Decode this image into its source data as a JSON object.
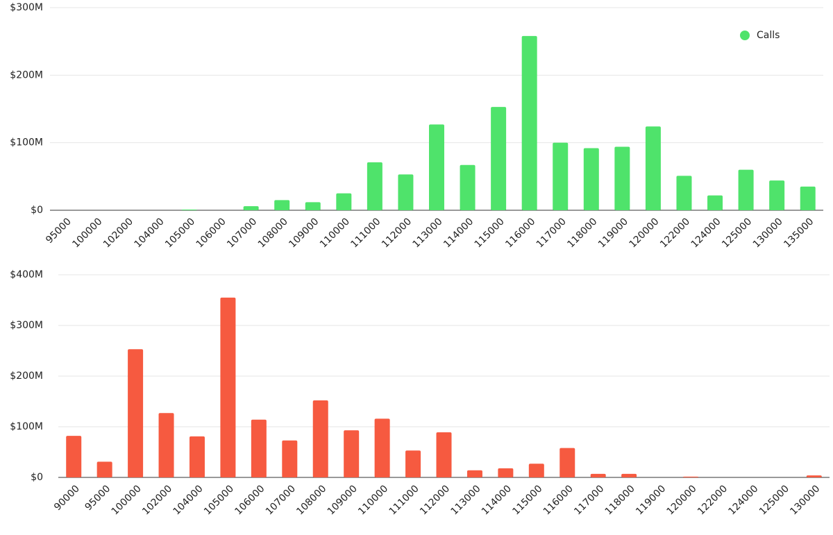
{
  "chart_data": [
    {
      "type": "bar",
      "categories": [
        "95000",
        "100000",
        "102000",
        "104000",
        "105000",
        "106000",
        "107000",
        "108000",
        "109000",
        "110000",
        "111000",
        "112000",
        "113000",
        "114000",
        "115000",
        "116000",
        "117000",
        "118000",
        "119000",
        "120000",
        "122000",
        "124000",
        "125000",
        "130000",
        "135000"
      ],
      "series": [
        {
          "name": "Calls",
          "color": "#4fe36b",
          "values": [
            0,
            0,
            0,
            0,
            1,
            0,
            6,
            15,
            12,
            25,
            71,
            53,
            127,
            67,
            153,
            258,
            100,
            92,
            94,
            124,
            51,
            22,
            60,
            44,
            35
          ]
        }
      ],
      "ylim": [
        0,
        300
      ],
      "yticks": [
        {
          "value": 0,
          "label": "$0"
        },
        {
          "value": 100,
          "label": "$100M"
        },
        {
          "value": 200,
          "label": "$200M"
        },
        {
          "value": 300,
          "label": "$300M"
        }
      ],
      "grid": true,
      "legend": "upper right"
    },
    {
      "type": "bar",
      "categories": [
        "90000",
        "95000",
        "100000",
        "102000",
        "104000",
        "105000",
        "106000",
        "107000",
        "108000",
        "109000",
        "110000",
        "111000",
        "112000",
        "113000",
        "114000",
        "115000",
        "116000",
        "117000",
        "118000",
        "119000",
        "120000",
        "122000",
        "124000",
        "125000",
        "130000"
      ],
      "series": [
        {
          "color": "#f65a40",
          "values": [
            82,
            31,
            253,
            127,
            81,
            355,
            114,
            73,
            152,
            93,
            116,
            53,
            89,
            14,
            18,
            27,
            58,
            7,
            7,
            0,
            1.5,
            0,
            0,
            0,
            4
          ]
        }
      ],
      "ylim": [
        0,
        400
      ],
      "yticks": [
        {
          "value": 0,
          "label": "$0"
        },
        {
          "value": 100,
          "label": "$100M"
        },
        {
          "value": 200,
          "label": "$200M"
        },
        {
          "value": 300,
          "label": "$300M"
        },
        {
          "value": 400,
          "label": "$400M"
        }
      ],
      "grid": true
    }
  ]
}
